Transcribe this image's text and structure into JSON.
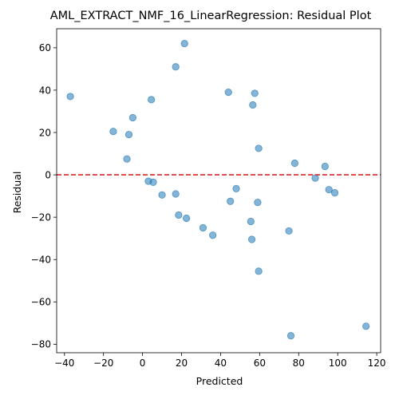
{
  "chart_data": {
    "type": "scatter",
    "title": "AML_EXTRACT_NMF_16_LinearRegression: Residual Plot",
    "xlabel": "Predicted",
    "ylabel": "Residual",
    "xlim": [
      -44,
      122
    ],
    "ylim": [
      -84,
      69
    ],
    "xticks": [
      -40,
      -20,
      0,
      20,
      40,
      60,
      80,
      100,
      120
    ],
    "yticks": [
      -80,
      -60,
      -40,
      -20,
      0,
      20,
      40,
      60
    ],
    "reference_line": {
      "y": 0,
      "style": "dashed",
      "color": "#d62728"
    },
    "point_color": "#1f77b4",
    "grid": false,
    "legend": "none",
    "points": [
      {
        "x": -37,
        "y": 37
      },
      {
        "x": -15,
        "y": 20.5
      },
      {
        "x": -7,
        "y": 19
      },
      {
        "x": -5,
        "y": 27
      },
      {
        "x": -8,
        "y": 7.5
      },
      {
        "x": 3,
        "y": -3
      },
      {
        "x": 5.5,
        "y": -3.5
      },
      {
        "x": 4.5,
        "y": 35.5
      },
      {
        "x": 10,
        "y": -9.5
      },
      {
        "x": 17,
        "y": 51
      },
      {
        "x": 17,
        "y": -9
      },
      {
        "x": 18.5,
        "y": -19
      },
      {
        "x": 21.5,
        "y": 62
      },
      {
        "x": 22.5,
        "y": -20.5
      },
      {
        "x": 31,
        "y": -25
      },
      {
        "x": 36,
        "y": -28.5
      },
      {
        "x": 44,
        "y": 39
      },
      {
        "x": 45,
        "y": -12.5
      },
      {
        "x": 48,
        "y": -6.5
      },
      {
        "x": 55.5,
        "y": -22
      },
      {
        "x": 56,
        "y": -30.5
      },
      {
        "x": 56.5,
        "y": 33
      },
      {
        "x": 57.5,
        "y": 38.5
      },
      {
        "x": 59,
        "y": -13
      },
      {
        "x": 59.5,
        "y": 12.5
      },
      {
        "x": 59.5,
        "y": -45.5
      },
      {
        "x": 75,
        "y": -26.5
      },
      {
        "x": 76,
        "y": -76
      },
      {
        "x": 78,
        "y": 5.5
      },
      {
        "x": 88.5,
        "y": -1.5
      },
      {
        "x": 93.5,
        "y": 4
      },
      {
        "x": 95.5,
        "y": -7
      },
      {
        "x": 98.5,
        "y": -8.5
      },
      {
        "x": 114.5,
        "y": -71.5
      }
    ]
  }
}
